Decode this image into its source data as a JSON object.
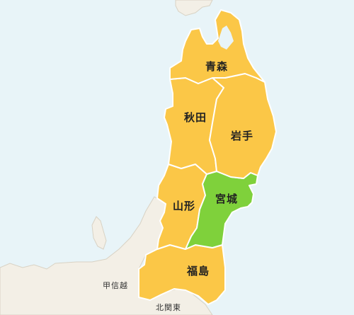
{
  "colors": {
    "sea": "#e8f4f8",
    "neighbor_land": "#f3efe6",
    "prefecture": "#fbc747",
    "selected": "#7fd13b",
    "border": "#ffffff"
  },
  "prefectures": [
    {
      "id": "aomori",
      "name": "青森",
      "selected": false
    },
    {
      "id": "akita",
      "name": "秋田",
      "selected": false
    },
    {
      "id": "iwate",
      "name": "岩手",
      "selected": false
    },
    {
      "id": "yamagata",
      "name": "山形",
      "selected": false
    },
    {
      "id": "miyagi",
      "name": "宮城",
      "selected": true
    },
    {
      "id": "fukushima",
      "name": "福島",
      "selected": false
    }
  ],
  "regions": [
    {
      "id": "koshinetsu",
      "name": "甲信越"
    },
    {
      "id": "kitakanto",
      "name": "北関東"
    }
  ]
}
